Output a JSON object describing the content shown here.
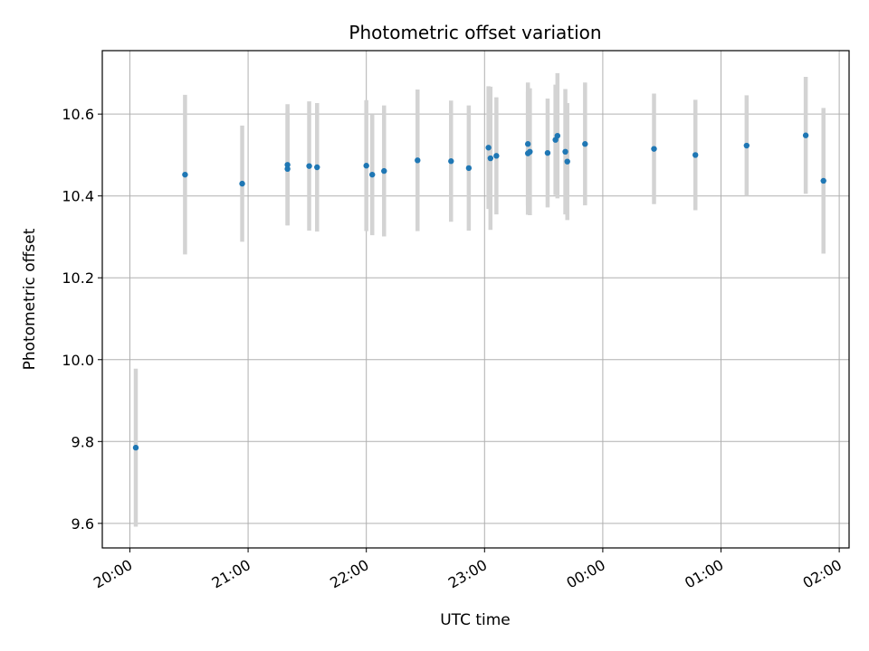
{
  "chart_data": {
    "type": "scatter",
    "title": "Photometric offset variation",
    "xlabel": "UTC time",
    "ylabel": "Photometric offset",
    "x_ticks": [
      "20:00",
      "21:00",
      "22:00",
      "23:00",
      "00:00",
      "01:00",
      "02:00"
    ],
    "y_ticks": [
      "9.6",
      "9.8",
      "10.0",
      "10.2",
      "10.4",
      "10.6"
    ],
    "xlim": [
      "19:46",
      "02:05"
    ],
    "ylim": [
      9.54,
      10.755
    ],
    "grid": true,
    "point_color": "#1f77b4",
    "errorbar_color": "#d3d3d3",
    "series": [
      {
        "x": [
          "20:03",
          "20:28",
          "20:57",
          "21:20",
          "21:20",
          "21:31",
          "21:35",
          "22:00",
          "22:03",
          "22:09",
          "22:26",
          "22:43",
          "22:52",
          "23:02",
          "23:03",
          "23:06",
          "23:22",
          "23:22",
          "23:23",
          "23:32",
          "23:36",
          "23:37",
          "23:41",
          "23:42",
          "23:51",
          "00:26",
          "00:47",
          "01:13",
          "01:43",
          "01:52"
        ],
        "y": [
          9.785,
          10.452,
          10.43,
          10.476,
          10.466,
          10.473,
          10.47,
          10.474,
          10.452,
          10.461,
          10.487,
          10.485,
          10.468,
          10.518,
          10.492,
          10.498,
          10.527,
          10.504,
          10.508,
          10.505,
          10.537,
          10.547,
          10.508,
          10.484,
          10.527,
          10.515,
          10.5,
          10.523,
          10.548,
          10.437
        ],
        "err": [
          0.193,
          0.195,
          0.142,
          0.148,
          0.138,
          0.158,
          0.157,
          0.16,
          0.148,
          0.16,
          0.173,
          0.148,
          0.153,
          0.15,
          0.175,
          0.143,
          0.15,
          0.15,
          0.155,
          0.133,
          0.135,
          0.153,
          0.153,
          0.143,
          0.15,
          0.135,
          0.135,
          0.123,
          0.143,
          0.178
        ]
      }
    ]
  }
}
